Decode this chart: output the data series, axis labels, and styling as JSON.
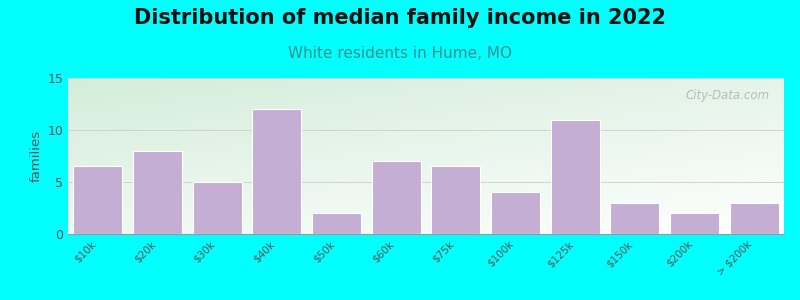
{
  "title": "Distribution of median family income in 2022",
  "subtitle": "White residents in Hume, MO",
  "ylabel": "families",
  "categories": [
    "$10k",
    "$20k",
    "$30k",
    "$40k",
    "$50k",
    "$60k",
    "$75k",
    "$100k",
    "$125k",
    "$150k",
    "$200k",
    "> $200k"
  ],
  "values": [
    6.5,
    8,
    5,
    12,
    2,
    7,
    6.5,
    4,
    11,
    3,
    2,
    3
  ],
  "bar_color": "#c4aed4",
  "bar_edge_color": "#ffffff",
  "ylim": [
    0,
    15
  ],
  "yticks": [
    0,
    5,
    10,
    15
  ],
  "background_color": "#00ffff",
  "title_fontsize": 15,
  "subtitle_fontsize": 11,
  "subtitle_color": "#3a9090",
  "ylabel_color": "#555555",
  "tick_color": "#555555",
  "watermark": "City-Data.com",
  "grid_color": "#cccccc"
}
